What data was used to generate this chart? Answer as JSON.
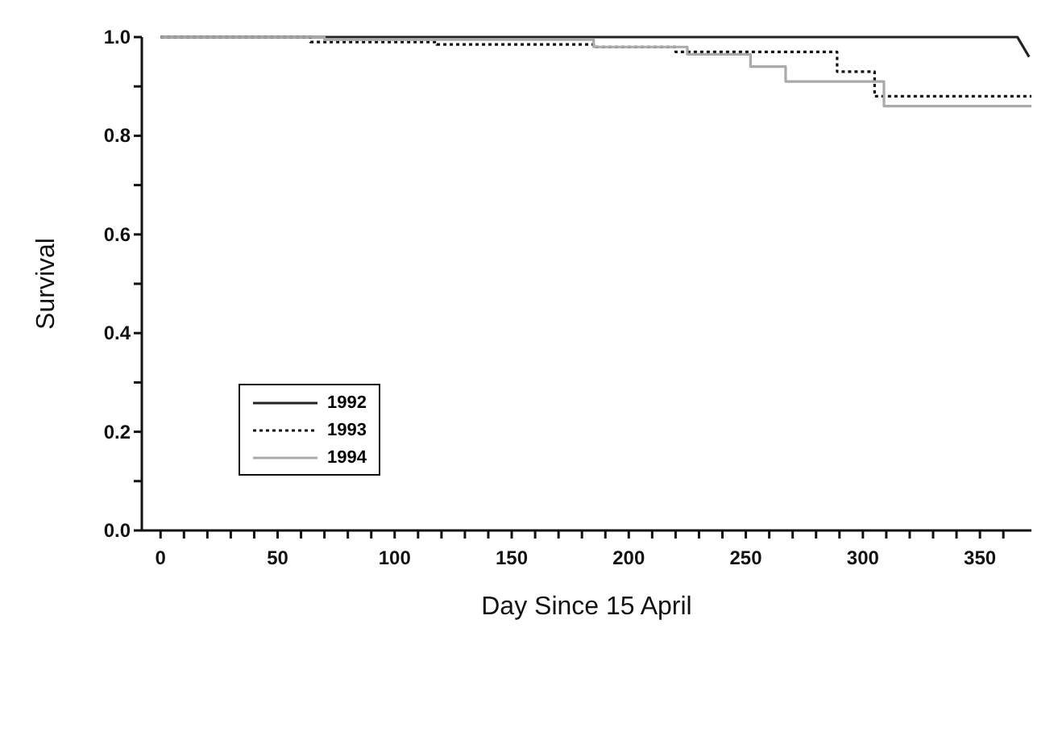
{
  "chart_data": {
    "type": "step",
    "xlabel": "Day Since 15 April",
    "ylabel": "Survival",
    "xlim": [
      -8,
      372
    ],
    "xticks": [
      0,
      {
        "value": 10,
        "label": null
      },
      {
        "value": 20,
        "label": null
      },
      {
        "value": 30,
        "label": null
      },
      {
        "value": 40,
        "label": null
      },
      50,
      {
        "value": 60,
        "label": null
      },
      {
        "value": 70,
        "label": null
      },
      {
        "value": 80,
        "label": null
      },
      {
        "value": 90,
        "label": null
      },
      100,
      {
        "value": 110,
        "label": null
      },
      {
        "value": 120,
        "label": null
      },
      {
        "value": 130,
        "label": null
      },
      {
        "value": 140,
        "label": null
      },
      150,
      {
        "value": 160,
        "label": null
      },
      {
        "value": 170,
        "label": null
      },
      {
        "value": 180,
        "label": null
      },
      {
        "value": 190,
        "label": null
      },
      200,
      {
        "value": 210,
        "label": null
      },
      {
        "value": 220,
        "label": null
      },
      {
        "value": 230,
        "label": null
      },
      {
        "value": 240,
        "label": null
      },
      250,
      {
        "value": 260,
        "label": null
      },
      {
        "value": 270,
        "label": null
      },
      {
        "value": 280,
        "label": null
      },
      {
        "value": 290,
        "label": null
      },
      300,
      {
        "value": 310,
        "label": null
      },
      {
        "value": 320,
        "label": null
      },
      {
        "value": 330,
        "label": null
      },
      {
        "value": 340,
        "label": null
      },
      350,
      {
        "value": 360,
        "label": null
      }
    ],
    "ylim": [
      0,
      1.0
    ],
    "yticks": [
      {
        "value": 0,
        "label": "0.0"
      },
      {
        "value": 0.1,
        "label": null
      },
      0.2,
      {
        "value": 0.3,
        "label": null
      },
      0.4,
      {
        "value": 0.5,
        "label": null
      },
      0.6,
      {
        "value": 0.7,
        "label": null
      },
      0.8,
      {
        "value": 0.9,
        "label": null
      },
      {
        "value": 1,
        "label": "1.0"
      }
    ],
    "legend": "center left",
    "marker": "none",
    "series": [
      {
        "name": "1992",
        "type": "line",
        "color": "#222222",
        "line_style": "solid",
        "x": [
          0,
          366,
          371
        ],
        "values": [
          1,
          1,
          0.96
        ]
      },
      {
        "name": "1993",
        "color": "#111111",
        "line_style": "dotted",
        "x": [
          0,
          64,
          118,
          185,
          220,
          289,
          305,
          372
        ],
        "values": [
          1,
          0.99,
          0.985,
          0.98,
          0.97,
          0.93,
          0.88,
          0.88
        ]
      },
      {
        "name": "1994",
        "color": "#aaaaaa",
        "line_style": "solid",
        "x": [
          0,
          70,
          185,
          225,
          252,
          267,
          309,
          372
        ],
        "values": [
          1,
          0.995,
          0.98,
          0.965,
          0.94,
          0.91,
          0.86,
          0.86
        ]
      }
    ]
  }
}
